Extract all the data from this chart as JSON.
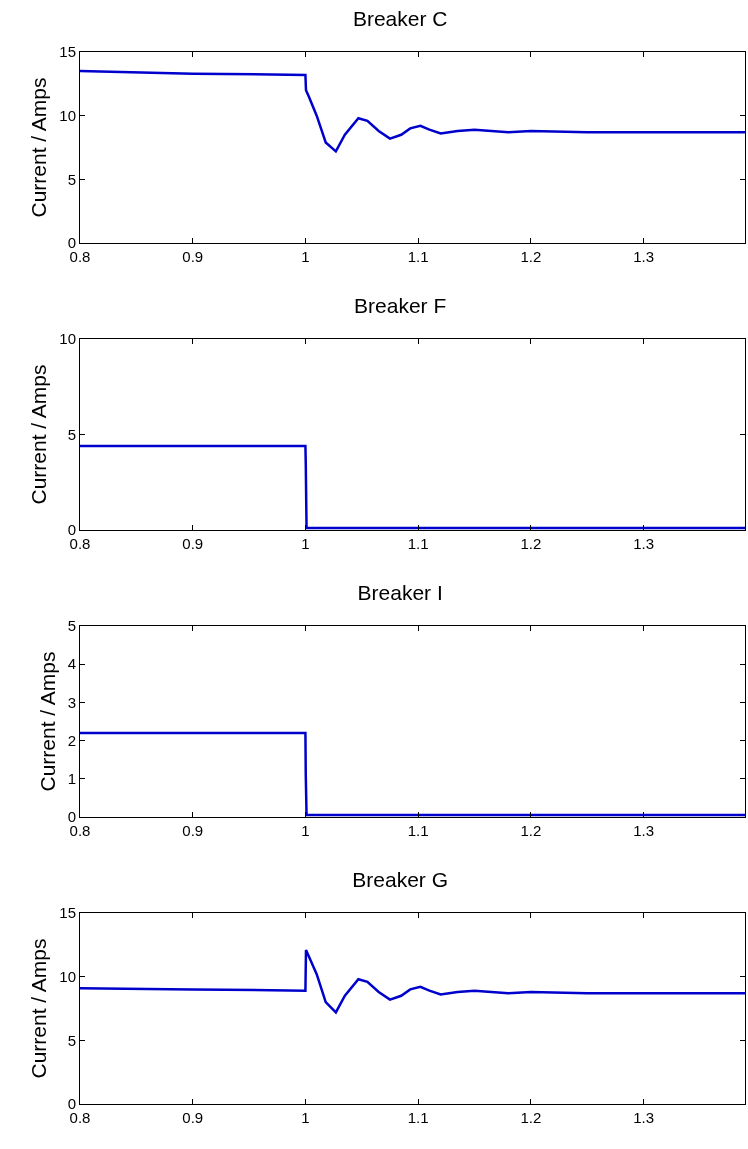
{
  "chart_data": [
    {
      "type": "line",
      "title": "Breaker C",
      "ylabel": "Current / Amps",
      "xlim": [
        0.8,
        1.39
      ],
      "xticks": [
        0.8,
        0.9,
        1,
        1.1,
        1.2,
        1.3
      ],
      "ylim": [
        0,
        15
      ],
      "yticks": [
        0,
        5,
        10,
        15
      ],
      "grid": false,
      "legend": false,
      "x": [
        0.8,
        0.9,
        1.0,
        1.0005,
        1.003,
        1.01,
        1.018,
        1.027,
        1.035,
        1.047,
        1.055,
        1.065,
        1.075,
        1.085,
        1.093,
        1.102,
        1.11,
        1.12,
        1.135,
        1.15,
        1.165,
        1.18,
        1.2,
        1.25,
        1.3,
        1.39
      ],
      "series": [
        {
          "color": "#0000cc",
          "values": [
            13.5,
            13.3,
            13.2,
            12.0,
            11.5,
            10.0,
            7.9,
            7.2,
            8.5,
            9.8,
            9.6,
            8.8,
            8.2,
            8.5,
            9.0,
            9.2,
            8.9,
            8.6,
            8.8,
            8.9,
            8.8,
            8.7,
            8.8,
            8.7,
            8.7,
            8.7
          ]
        }
      ]
    },
    {
      "type": "line",
      "title": "Breaker F",
      "ylabel": "Current / Amps",
      "xlim": [
        0.8,
        1.39
      ],
      "xticks": [
        0.8,
        0.9,
        1,
        1.1,
        1.2,
        1.3
      ],
      "ylim": [
        0,
        10
      ],
      "yticks": [
        0,
        5,
        10
      ],
      "grid": false,
      "legend": false,
      "x": [
        0.8,
        0.9,
        1.0,
        1.0003,
        1.001,
        1.002,
        1.1,
        1.2,
        1.3,
        1.39
      ],
      "series": [
        {
          "color": "#0000cc",
          "values": [
            4.4,
            4.4,
            4.4,
            3.5,
            0.1,
            0.1,
            0.1,
            0.1,
            0.1,
            0.1
          ]
        }
      ]
    },
    {
      "type": "line",
      "title": "Breaker I",
      "ylabel": "Current / Amps",
      "xlim": [
        0.8,
        1.39
      ],
      "xticks": [
        0.8,
        0.9,
        1,
        1.1,
        1.2,
        1.3
      ],
      "ylim": [
        0,
        5
      ],
      "yticks": [
        0,
        1,
        2,
        3,
        4,
        5
      ],
      "grid": false,
      "legend": false,
      "x": [
        0.8,
        0.9,
        1.0,
        1.0003,
        1.001,
        1.002,
        1.1,
        1.2,
        1.3,
        1.39
      ],
      "series": [
        {
          "color": "#0000cc",
          "values": [
            2.2,
            2.2,
            2.2,
            1.1,
            0.05,
            0.05,
            0.05,
            0.05,
            0.05,
            0.05
          ]
        }
      ]
    },
    {
      "type": "line",
      "title": "Breaker G",
      "ylabel": "Current / Amps",
      "xlim": [
        0.8,
        1.39
      ],
      "xticks": [
        0.8,
        0.9,
        1,
        1.1,
        1.2,
        1.3
      ],
      "ylim": [
        0,
        15
      ],
      "yticks": [
        0,
        5,
        10,
        15
      ],
      "grid": false,
      "legend": false,
      "x": [
        0.8,
        0.9,
        1.0,
        1.0005,
        1.002,
        1.01,
        1.018,
        1.027,
        1.035,
        1.047,
        1.055,
        1.065,
        1.075,
        1.085,
        1.093,
        1.102,
        1.11,
        1.12,
        1.135,
        1.15,
        1.165,
        1.18,
        1.2,
        1.25,
        1.3,
        1.39
      ],
      "series": [
        {
          "color": "#0000cc",
          "values": [
            9.1,
            9.0,
            8.9,
            12.1,
            11.8,
            10.2,
            8.0,
            7.2,
            8.5,
            9.8,
            9.6,
            8.8,
            8.2,
            8.5,
            9.0,
            9.2,
            8.9,
            8.6,
            8.8,
            8.9,
            8.8,
            8.7,
            8.8,
            8.7,
            8.7,
            8.7
          ]
        }
      ]
    }
  ]
}
